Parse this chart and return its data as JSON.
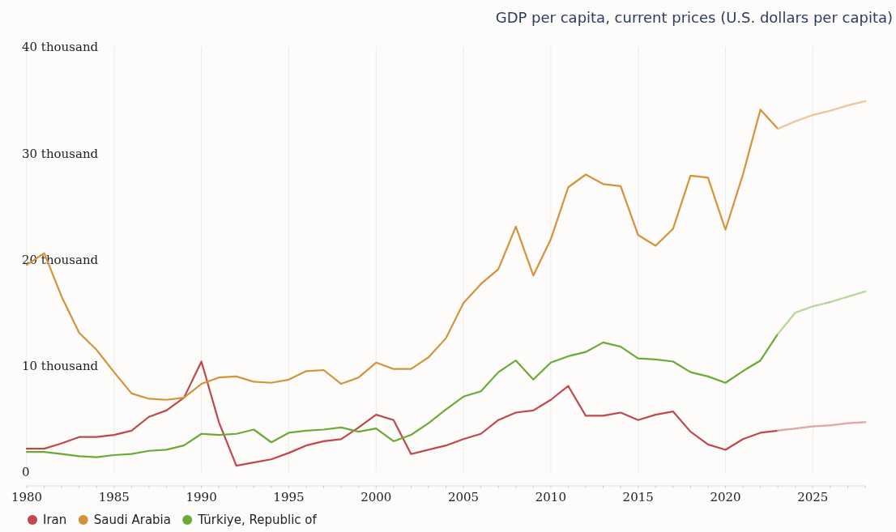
{
  "chart_data": {
    "type": "line",
    "title": "GDP per capita, current prices (U.S. dollars per capita)",
    "x": [
      1980,
      1981,
      1982,
      1983,
      1984,
      1985,
      1986,
      1987,
      1988,
      1989,
      1990,
      1991,
      1992,
      1993,
      1994,
      1995,
      1996,
      1997,
      1998,
      1999,
      2000,
      2001,
      2002,
      2003,
      2004,
      2005,
      2006,
      2007,
      2008,
      2009,
      2010,
      2011,
      2012,
      2013,
      2014,
      2015,
      2016,
      2017,
      2018,
      2019,
      2020,
      2021,
      2022,
      2023
    ],
    "series": [
      {
        "name": "Iran",
        "color": "#c0474b",
        "values": [
          2200,
          2200,
          2700,
          3300,
          3300,
          3500,
          3900,
          5200,
          5800,
          7000,
          10400,
          4700,
          600,
          900,
          1200,
          1800,
          2500,
          2900,
          3100,
          4200,
          5400,
          4900,
          1700,
          2100,
          2500,
          3100,
          3600,
          4900,
          5600,
          5800,
          6800,
          8100,
          5300,
          5300,
          5600,
          4900,
          5400,
          5700,
          3800,
          2600,
          2100,
          3100,
          3700,
          3900
        ]
      },
      {
        "name": "Saudi Arabia",
        "color": "#d4933a",
        "values": [
          19500,
          20600,
          16500,
          13100,
          11500,
          9400,
          7400,
          6900,
          6800,
          7000,
          8300,
          8900,
          9000,
          8500,
          8400,
          8700,
          9500,
          9600,
          8300,
          8900,
          10300,
          9700,
          9700,
          10800,
          12600,
          15900,
          17700,
          19100,
          23100,
          18500,
          21900,
          26800,
          28000,
          27100,
          26900,
          22300,
          21300,
          22900,
          27900,
          27700,
          22800,
          28000,
          34100,
          32300
        ]
      },
      {
        "name": "Türkiye, Republic of",
        "color": "#6aaa35",
        "values": [
          1900,
          1900,
          1700,
          1500,
          1400,
          1600,
          1700,
          2000,
          2100,
          2500,
          3600,
          3500,
          3600,
          4000,
          2800,
          3700,
          3900,
          4000,
          4200,
          3800,
          4100,
          2900,
          3500,
          4600,
          5900,
          7100,
          7600,
          9400,
          10500,
          8700,
          10300,
          10900,
          11300,
          12200,
          11800,
          10700,
          10600,
          10400,
          9400,
          9000,
          8400,
          9500,
          10500,
          13000
        ]
      },
      {
        "color": "#e3a4a6",
        "line_style": "dotted",
        "x": [
          2023,
          2024,
          2025,
          2026,
          2027,
          2028
        ],
        "values": [
          3900,
          4100,
          4300,
          4400,
          4600,
          4700
        ]
      },
      {
        "color": "#ecc79c",
        "line_style": "dotted",
        "x": [
          2023,
          2024,
          2025,
          2026,
          2027,
          2028
        ],
        "values": [
          32300,
          33000,
          33600,
          34000,
          34500,
          34900
        ]
      },
      {
        "color": "#b7d99a",
        "line_style": "dotted",
        "x": [
          2023,
          2024,
          2025,
          2026,
          2027,
          2028
        ],
        "values": [
          13000,
          15000,
          15600,
          16000,
          16500,
          17000
        ]
      }
    ],
    "xlim": [
      1980,
      2028
    ],
    "xticks": [
      1980,
      1985,
      1990,
      1995,
      2000,
      2005,
      2010,
      2015,
      2020,
      2025
    ],
    "ylim": [
      0,
      40000
    ],
    "yticks": [
      {
        "value": 0,
        "label": "0"
      },
      {
        "value": 10000,
        "label": "10 thousand"
      },
      {
        "value": 20000,
        "label": "20 thousand"
      },
      {
        "value": 30000,
        "label": "30 thousand"
      },
      {
        "value": 40000,
        "label": "40 thousand"
      }
    ],
    "grid": "x",
    "legend": "bottom left",
    "line_style": "solid",
    "marker": "none"
  }
}
